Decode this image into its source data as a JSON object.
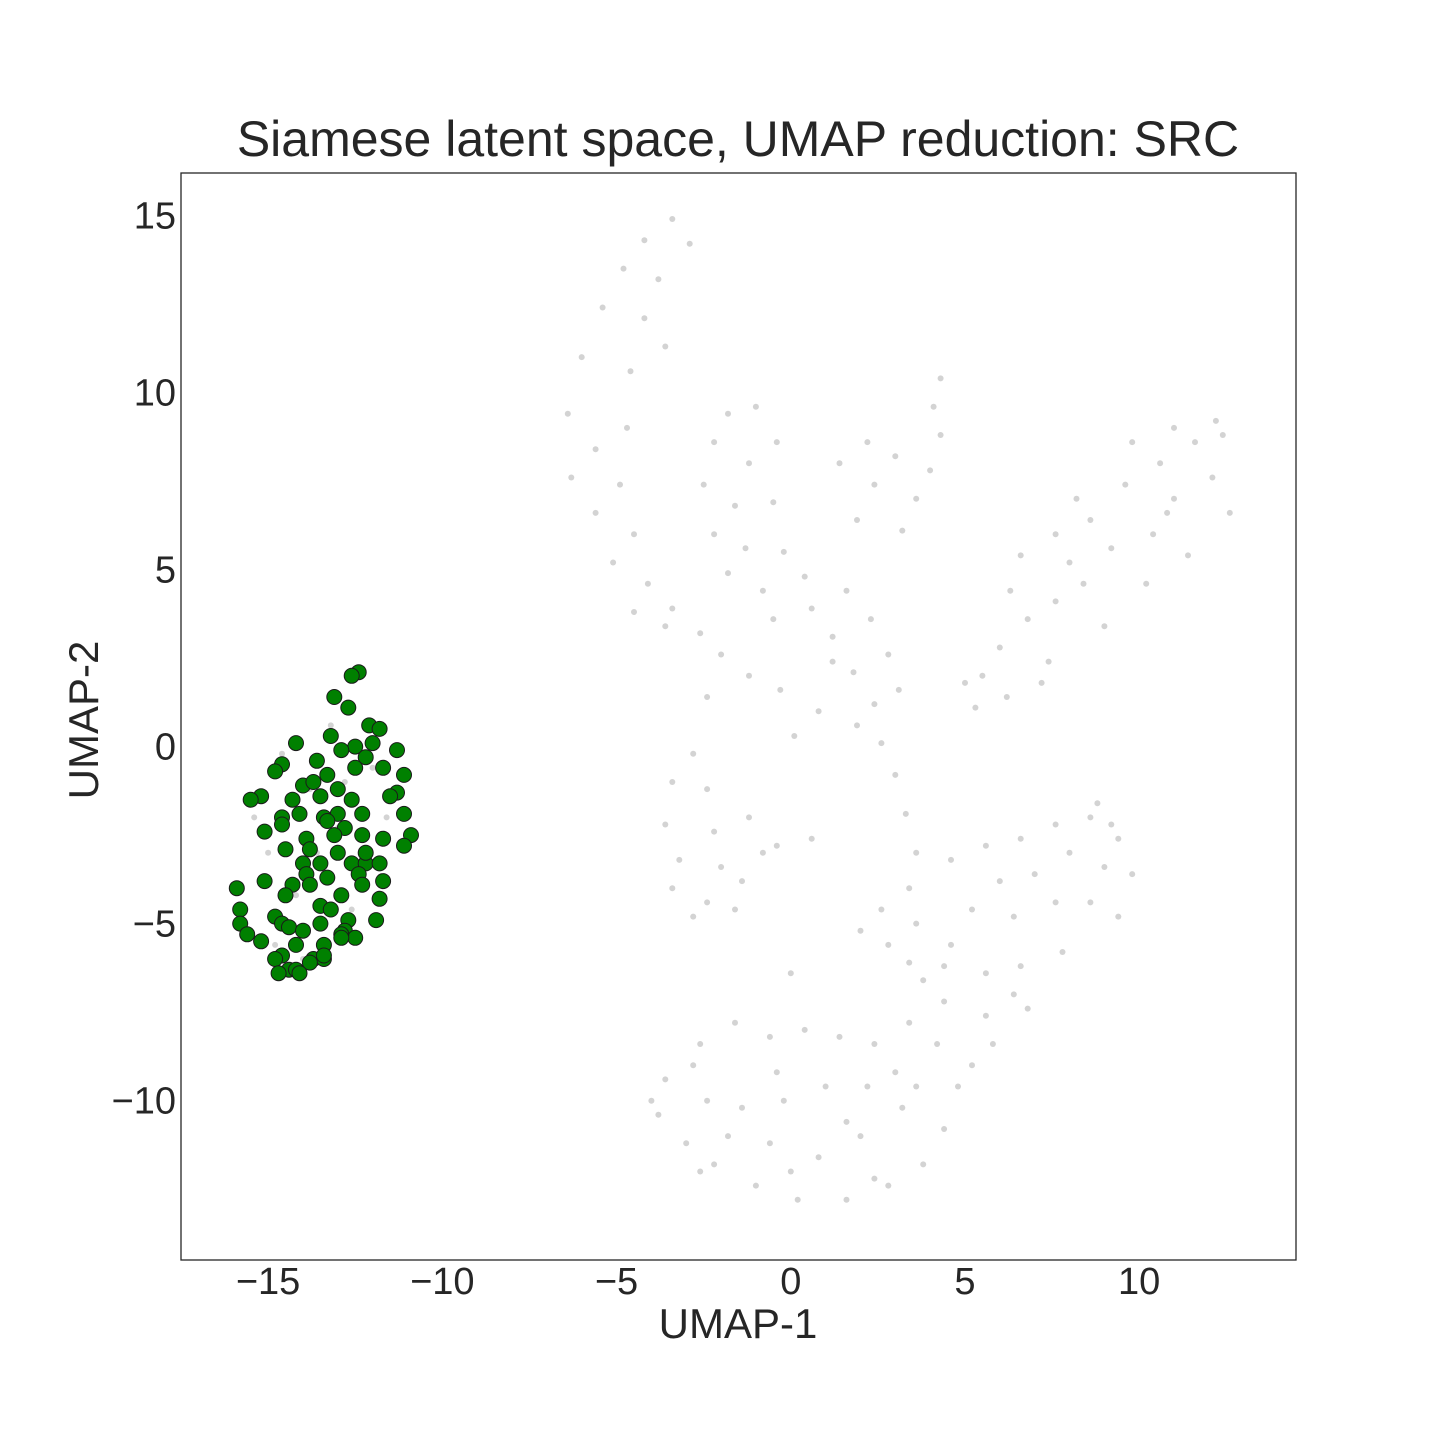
{
  "chart_data": {
    "type": "scatter",
    "title": "Siamese latent space, UMAP reduction: SRC",
    "xlabel": "UMAP-1",
    "ylabel": "UMAP-2",
    "xlim": [
      -17.5,
      14.5
    ],
    "ylim": [
      -14.5,
      16.2
    ],
    "xticks": [
      -15,
      -10,
      -5,
      0,
      5,
      10
    ],
    "xtick_labels": [
      "−15",
      "−10",
      "−5",
      "0",
      "5",
      "10"
    ],
    "yticks": [
      15,
      10,
      5,
      0,
      -5,
      -10
    ],
    "ytick_labels": [
      "15",
      "10",
      "5",
      "0",
      "−5",
      "−10"
    ],
    "grid": false,
    "series": [
      {
        "role": "background",
        "color": "#808080",
        "opacity": 0.35,
        "points": [
          [
            -14.6,
            -0.2
          ],
          [
            -13.8,
            -1.2
          ],
          [
            -13.0,
            -2.3
          ],
          [
            -12.4,
            -3.5
          ],
          [
            -14.2,
            -4.2
          ],
          [
            -13.5,
            -5.1
          ],
          [
            -12.8,
            -1.0
          ],
          [
            -15.0,
            -3.0
          ],
          [
            -12.0,
            -0.6
          ],
          [
            -13.2,
            0.6
          ],
          [
            -14.8,
            -5.6
          ],
          [
            -11.6,
            -2.0
          ],
          [
            -15.4,
            -2.0
          ],
          [
            -12.6,
            -4.6
          ],
          [
            -13.6,
            -3.0
          ],
          [
            -14.0,
            -6.0
          ],
          [
            -4.2,
            14.3
          ],
          [
            -3.4,
            14.9
          ],
          [
            -2.9,
            14.2
          ],
          [
            -4.8,
            13.5
          ],
          [
            -3.8,
            13.2
          ],
          [
            -5.4,
            12.4
          ],
          [
            -4.2,
            12.1
          ],
          [
            -3.6,
            11.3
          ],
          [
            -6.0,
            11.0
          ],
          [
            -4.6,
            10.6
          ],
          [
            -6.4,
            9.4
          ],
          [
            -4.7,
            9.0
          ],
          [
            -5.6,
            8.4
          ],
          [
            -6.3,
            7.6
          ],
          [
            -4.9,
            7.4
          ],
          [
            -5.6,
            6.6
          ],
          [
            -4.5,
            6.0
          ],
          [
            -5.1,
            5.2
          ],
          [
            -4.1,
            4.6
          ],
          [
            -3.4,
            3.9
          ],
          [
            -4.5,
            3.8
          ],
          [
            -2.6,
            3.2
          ],
          [
            -3.6,
            3.4
          ],
          [
            -2.0,
            2.6
          ],
          [
            -1.8,
            9.4
          ],
          [
            -1.0,
            9.6
          ],
          [
            -2.2,
            8.6
          ],
          [
            -1.2,
            8.0
          ],
          [
            -0.4,
            8.6
          ],
          [
            -2.5,
            7.4
          ],
          [
            -1.6,
            6.8
          ],
          [
            -0.5,
            6.9
          ],
          [
            -2.2,
            6.0
          ],
          [
            -1.3,
            5.6
          ],
          [
            -0.2,
            5.5
          ],
          [
            -1.8,
            4.9
          ],
          [
            -0.8,
            4.4
          ],
          [
            0.4,
            4.8
          ],
          [
            -0.5,
            3.6
          ],
          [
            0.6,
            3.9
          ],
          [
            1.6,
            4.4
          ],
          [
            1.2,
            3.1
          ],
          [
            2.3,
            3.6
          ],
          [
            2.8,
            2.6
          ],
          [
            1.8,
            2.1
          ],
          [
            3.1,
            1.6
          ],
          [
            2.4,
            1.2
          ],
          [
            1.9,
            0.6
          ],
          [
            2.6,
            0.1
          ],
          [
            3.0,
            -0.8
          ],
          [
            3.3,
            -1.9
          ],
          [
            3.6,
            -3.0
          ],
          [
            3.4,
            -4.0
          ],
          [
            3.6,
            -5.0
          ],
          [
            3.4,
            -6.1
          ],
          [
            1.2,
            2.4
          ],
          [
            1.4,
            8.0
          ],
          [
            2.2,
            8.6
          ],
          [
            3.0,
            8.2
          ],
          [
            2.4,
            7.4
          ],
          [
            3.6,
            7.0
          ],
          [
            1.9,
            6.4
          ],
          [
            3.2,
            6.1
          ],
          [
            4.1,
            9.6
          ],
          [
            4.3,
            8.8
          ],
          [
            4.0,
            7.8
          ],
          [
            4.3,
            10.4
          ],
          [
            0.8,
            1.0
          ],
          [
            -0.3,
            1.6
          ],
          [
            -1.2,
            2.0
          ],
          [
            -2.4,
            1.4
          ],
          [
            0.1,
            0.3
          ],
          [
            -2.8,
            -0.2
          ],
          [
            -3.4,
            -1.0
          ],
          [
            -2.4,
            -1.2
          ],
          [
            -3.6,
            -2.2
          ],
          [
            -2.2,
            -2.4
          ],
          [
            -1.2,
            -2.0
          ],
          [
            -3.2,
            -3.2
          ],
          [
            -2.0,
            -3.4
          ],
          [
            -0.8,
            -3.0
          ],
          [
            -3.4,
            -4.0
          ],
          [
            -2.4,
            -4.4
          ],
          [
            -1.4,
            -3.8
          ],
          [
            -0.4,
            -2.8
          ],
          [
            -2.8,
            -4.8
          ],
          [
            -1.6,
            -4.6
          ],
          [
            0.6,
            -2.6
          ],
          [
            6.6,
            5.4
          ],
          [
            7.6,
            6.0
          ],
          [
            8.6,
            6.4
          ],
          [
            9.6,
            7.4
          ],
          [
            10.6,
            8.0
          ],
          [
            11.6,
            8.6
          ],
          [
            12.4,
            8.8
          ],
          [
            12.1,
            7.6
          ],
          [
            11.0,
            7.0
          ],
          [
            10.4,
            6.0
          ],
          [
            9.2,
            5.6
          ],
          [
            8.4,
            4.6
          ],
          [
            7.6,
            4.1
          ],
          [
            6.8,
            3.6
          ],
          [
            6.0,
            2.8
          ],
          [
            5.5,
            2.0
          ],
          [
            6.2,
            1.4
          ],
          [
            7.4,
            2.4
          ],
          [
            9.0,
            3.4
          ],
          [
            10.2,
            4.6
          ],
          [
            11.4,
            5.4
          ],
          [
            12.6,
            6.6
          ],
          [
            8.2,
            7.0
          ],
          [
            6.3,
            4.4
          ],
          [
            5.0,
            1.8
          ],
          [
            5.3,
            1.1
          ],
          [
            7.2,
            1.8
          ],
          [
            9.8,
            8.6
          ],
          [
            11.0,
            9.0
          ],
          [
            12.2,
            9.2
          ],
          [
            8.0,
            5.2
          ],
          [
            10.8,
            6.6
          ],
          [
            4.6,
            -3.2
          ],
          [
            5.6,
            -2.8
          ],
          [
            6.6,
            -2.6
          ],
          [
            7.6,
            -2.2
          ],
          [
            8.6,
            -2.0
          ],
          [
            9.4,
            -2.6
          ],
          [
            9.8,
            -3.6
          ],
          [
            9.0,
            -3.4
          ],
          [
            8.0,
            -3.0
          ],
          [
            7.0,
            -3.6
          ],
          [
            6.0,
            -3.8
          ],
          [
            5.2,
            -4.6
          ],
          [
            6.4,
            -4.8
          ],
          [
            7.6,
            -4.4
          ],
          [
            8.6,
            -4.4
          ],
          [
            9.4,
            -4.8
          ],
          [
            4.6,
            -5.6
          ],
          [
            5.6,
            -6.4
          ],
          [
            6.6,
            -6.2
          ],
          [
            7.8,
            -5.8
          ],
          [
            4.4,
            -7.2
          ],
          [
            5.6,
            -7.6
          ],
          [
            6.4,
            -7.0
          ],
          [
            4.2,
            -8.4
          ],
          [
            5.2,
            -9.0
          ],
          [
            3.4,
            -7.8
          ],
          [
            2.4,
            -8.4
          ],
          [
            1.4,
            -8.2
          ],
          [
            0.4,
            -8.0
          ],
          [
            -0.6,
            -8.2
          ],
          [
            -1.6,
            -7.8
          ],
          [
            -2.6,
            -8.4
          ],
          [
            -3.6,
            -9.4
          ],
          [
            -3.8,
            -10.4
          ],
          [
            -3.0,
            -11.2
          ],
          [
            -2.2,
            -11.8
          ],
          [
            -1.0,
            -12.4
          ],
          [
            0.2,
            -12.8
          ],
          [
            1.6,
            -12.8
          ],
          [
            2.8,
            -12.4
          ],
          [
            3.8,
            -11.8
          ],
          [
            4.4,
            -10.8
          ],
          [
            3.2,
            -10.2
          ],
          [
            2.2,
            -9.6
          ],
          [
            1.0,
            -9.6
          ],
          [
            -0.2,
            -10.0
          ],
          [
            -1.4,
            -10.2
          ],
          [
            -2.4,
            -10.0
          ],
          [
            -1.8,
            -11.0
          ],
          [
            -0.6,
            -11.2
          ],
          [
            0.8,
            -11.6
          ],
          [
            2.0,
            -11.0
          ],
          [
            3.0,
            -9.2
          ],
          [
            1.6,
            -10.6
          ],
          [
            -0.4,
            -9.2
          ],
          [
            -2.8,
            -9.0
          ],
          [
            -4.0,
            -10.0
          ],
          [
            -2.6,
            -12.0
          ],
          [
            0.0,
            -12.0
          ],
          [
            2.4,
            -12.2
          ],
          [
            3.6,
            -9.6
          ],
          [
            4.8,
            -9.6
          ],
          [
            5.8,
            -8.4
          ],
          [
            6.8,
            -7.4
          ],
          [
            2.8,
            -5.6
          ],
          [
            2.0,
            -5.2
          ],
          [
            3.8,
            -6.6
          ],
          [
            2.6,
            -4.6
          ],
          [
            8.8,
            -1.6
          ],
          [
            9.2,
            -2.2
          ],
          [
            4.4,
            -6.2
          ],
          [
            0.0,
            -6.4
          ]
        ]
      },
      {
        "role": "highlight",
        "color": "#008000",
        "points": [
          [
            -12.4,
            2.1
          ],
          [
            -12.6,
            2.0
          ],
          [
            -13.1,
            1.4
          ],
          [
            -12.7,
            1.1
          ],
          [
            -12.1,
            0.6
          ],
          [
            -11.8,
            0.5
          ],
          [
            -13.2,
            0.3
          ],
          [
            -12.5,
            0.0
          ],
          [
            -14.2,
            0.1
          ],
          [
            -12.0,
            0.1
          ],
          [
            -12.9,
            -0.1
          ],
          [
            -11.3,
            -0.1
          ],
          [
            -13.6,
            -0.4
          ],
          [
            -14.6,
            -0.5
          ],
          [
            -14.8,
            -0.7
          ],
          [
            -12.2,
            -0.3
          ],
          [
            -12.5,
            -0.6
          ],
          [
            -13.3,
            -0.8
          ],
          [
            -11.7,
            -0.6
          ],
          [
            -11.1,
            -0.8
          ],
          [
            -14.0,
            -1.1
          ],
          [
            -13.7,
            -1.0
          ],
          [
            -13.0,
            -1.2
          ],
          [
            -13.5,
            -1.4
          ],
          [
            -11.3,
            -1.3
          ],
          [
            -15.2,
            -1.4
          ],
          [
            -14.3,
            -1.5
          ],
          [
            -12.6,
            -1.5
          ],
          [
            -15.5,
            -1.5
          ],
          [
            -13.0,
            -1.9
          ],
          [
            -14.6,
            -2.0
          ],
          [
            -14.1,
            -1.9
          ],
          [
            -13.4,
            -2.0
          ],
          [
            -12.3,
            -1.9
          ],
          [
            -11.1,
            -1.9
          ],
          [
            -12.8,
            -2.3
          ],
          [
            -14.6,
            -2.2
          ],
          [
            -13.3,
            -2.1
          ],
          [
            -15.1,
            -2.4
          ],
          [
            -13.1,
            -2.5
          ],
          [
            -13.9,
            -2.6
          ],
          [
            -12.3,
            -2.5
          ],
          [
            -11.7,
            -2.6
          ],
          [
            -10.9,
            -2.5
          ],
          [
            -14.5,
            -2.9
          ],
          [
            -13.8,
            -2.9
          ],
          [
            -13.0,
            -3.0
          ],
          [
            -11.1,
            -2.8
          ],
          [
            -14.0,
            -3.3
          ],
          [
            -13.5,
            -3.3
          ],
          [
            -12.6,
            -3.3
          ],
          [
            -12.2,
            -3.3
          ],
          [
            -11.8,
            -3.3
          ],
          [
            -13.9,
            -3.6
          ],
          [
            -13.3,
            -3.7
          ],
          [
            -12.4,
            -3.6
          ],
          [
            -11.7,
            -3.8
          ],
          [
            -15.1,
            -3.8
          ],
          [
            -14.3,
            -3.9
          ],
          [
            -13.8,
            -3.9
          ],
          [
            -12.3,
            -3.9
          ],
          [
            -15.9,
            -4.0
          ],
          [
            -14.5,
            -4.2
          ],
          [
            -12.9,
            -4.2
          ],
          [
            -11.8,
            -4.3
          ],
          [
            -15.8,
            -4.6
          ],
          [
            -13.5,
            -4.5
          ],
          [
            -14.8,
            -4.8
          ],
          [
            -13.2,
            -4.6
          ],
          [
            -14.6,
            -5.0
          ],
          [
            -12.7,
            -4.9
          ],
          [
            -11.9,
            -4.9
          ],
          [
            -15.8,
            -5.0
          ],
          [
            -14.4,
            -5.1
          ],
          [
            -14.0,
            -5.2
          ],
          [
            -13.5,
            -5.0
          ],
          [
            -12.8,
            -5.2
          ],
          [
            -15.6,
            -5.3
          ],
          [
            -12.5,
            -5.4
          ],
          [
            -15.2,
            -5.5
          ],
          [
            -14.2,
            -5.6
          ],
          [
            -13.4,
            -5.6
          ],
          [
            -12.9,
            -5.3
          ],
          [
            -14.6,
            -5.9
          ],
          [
            -14.8,
            -6.0
          ],
          [
            -13.7,
            -6.0
          ],
          [
            -13.4,
            -6.0
          ],
          [
            -14.4,
            -6.3
          ],
          [
            -14.2,
            -6.3
          ],
          [
            -14.7,
            -6.4
          ],
          [
            -13.8,
            -6.1
          ],
          [
            -12.9,
            -5.4
          ],
          [
            -13.4,
            -5.9
          ],
          [
            -14.1,
            -6.4
          ],
          [
            -12.2,
            -3.0
          ],
          [
            -11.5,
            -1.4
          ]
        ]
      }
    ]
  }
}
